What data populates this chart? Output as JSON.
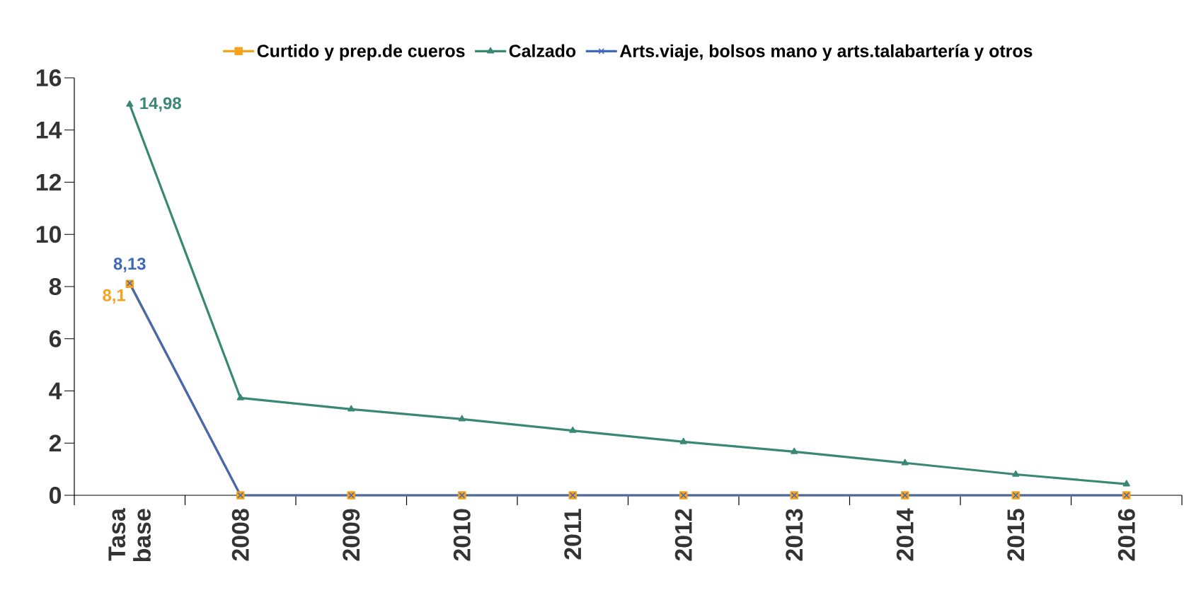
{
  "chart_data": {
    "type": "line",
    "categories": [
      "Tasa base",
      "2008",
      "2009",
      "2010",
      "2011",
      "2012",
      "2013",
      "2014",
      "2015",
      "2016"
    ],
    "series": [
      {
        "name": "Curtido y prep.de cueros",
        "color": "#f5a21d",
        "marker": "square",
        "values": [
          8.1,
          0,
          0,
          0,
          0,
          0,
          0,
          0,
          0,
          0
        ],
        "value_labels": [
          "8,1",
          null,
          null,
          null,
          null,
          null,
          null,
          null,
          null,
          null
        ]
      },
      {
        "name": "Calzado",
        "color": "#3a8776",
        "marker": "triangle",
        "values": [
          14.98,
          3.73,
          3.3,
          2.92,
          2.48,
          2.05,
          1.67,
          1.24,
          0.8,
          0.43
        ],
        "value_labels": [
          "14,98",
          null,
          null,
          null,
          null,
          null,
          null,
          null,
          null,
          null
        ]
      },
      {
        "name": "Arts.viaje, bolsos mano y arts.talabartería y otros",
        "color": "#4169b8",
        "marker": "cross",
        "values": [
          8.13,
          0,
          0,
          0,
          0,
          0,
          0,
          0,
          0,
          0
        ],
        "value_labels": [
          "8,13",
          null,
          null,
          null,
          null,
          null,
          null,
          null,
          null,
          null
        ]
      }
    ],
    "ylim": [
      0,
      16
    ],
    "yticks": [
      0,
      2,
      4,
      6,
      8,
      10,
      12,
      14,
      16
    ],
    "legend": "top"
  }
}
